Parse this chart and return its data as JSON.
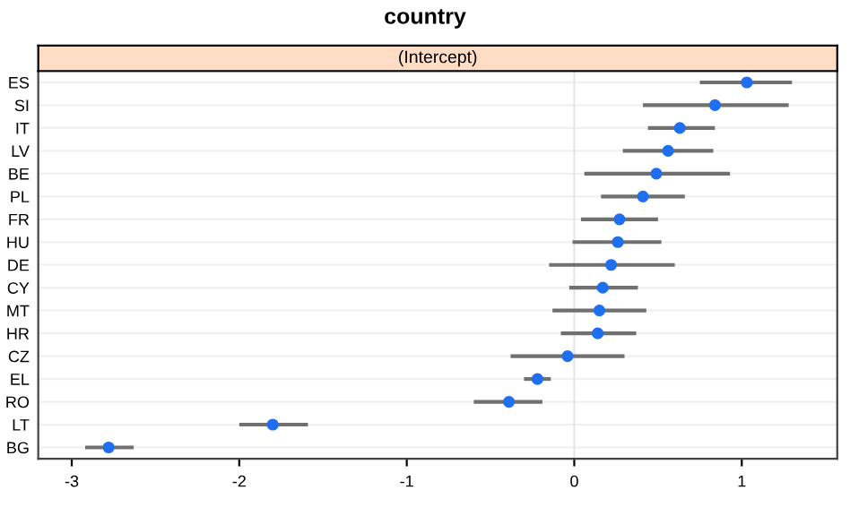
{
  "chart_data": {
    "type": "scatter",
    "orientation": "horizontal",
    "title": "country",
    "subtitle": "(Intercept)",
    "categories": [
      "ES",
      "SI",
      "IT",
      "LV",
      "BE",
      "PL",
      "FR",
      "HU",
      "DE",
      "CY",
      "MT",
      "HR",
      "CZ",
      "EL",
      "RO",
      "LT",
      "BG"
    ],
    "series": [
      {
        "color": "#1f6ff0",
        "values": [
          1.03,
          0.84,
          0.63,
          0.56,
          0.49,
          0.41,
          0.27,
          0.26,
          0.22,
          0.17,
          0.15,
          0.14,
          -0.04,
          -0.22,
          -0.39,
          -1.8,
          -2.78
        ],
        "errors": [
          [
            0.75,
            1.3
          ],
          [
            0.41,
            1.28
          ],
          [
            0.44,
            0.84
          ],
          [
            0.29,
            0.83
          ],
          [
            0.06,
            0.93
          ],
          [
            0.16,
            0.66
          ],
          [
            0.04,
            0.5
          ],
          [
            -0.01,
            0.52
          ],
          [
            -0.15,
            0.6
          ],
          [
            -0.03,
            0.38
          ],
          [
            -0.13,
            0.43
          ],
          [
            -0.08,
            0.37
          ],
          [
            -0.38,
            0.3
          ],
          [
            -0.3,
            -0.14
          ],
          [
            -0.6,
            -0.19
          ],
          [
            -2.0,
            -1.59
          ],
          [
            -2.92,
            -2.63
          ]
        ]
      }
    ],
    "xlim": [
      -3.2,
      1.57
    ],
    "xticks": [
      -3,
      -2,
      -1,
      0,
      1
    ],
    "grid": "y",
    "marker": "circle",
    "ref_lines": [
      {
        "axis": "x",
        "value": 0,
        "color": "#e6e6e6"
      }
    ]
  }
}
